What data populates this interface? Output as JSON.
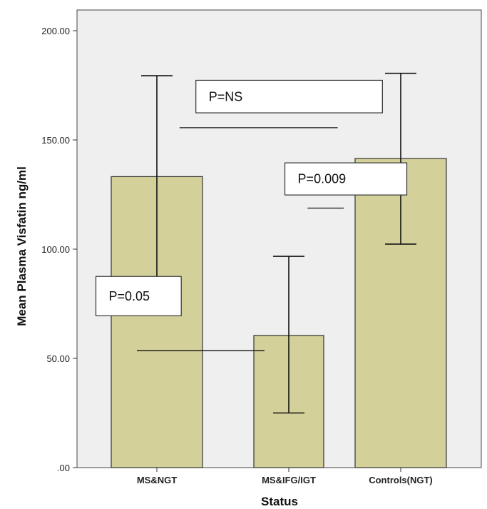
{
  "chart_data": {
    "type": "bar",
    "xlabel": "Status",
    "ylabel": "Mean Plasma Visfatin ng/ml",
    "ylim": [
      0,
      217
    ],
    "yticks": [
      0,
      50,
      100,
      150,
      200
    ],
    "ytick_labels": [
      ".00",
      "50.00",
      "100.00",
      "150.00",
      "200.00"
    ],
    "grid": false,
    "categories": [
      "MS&NGT",
      "MS&IFG/IGT",
      "Controls(NGT)"
    ],
    "values": [
      133.2,
      60.5,
      141.5
    ],
    "error_low": [
      86.5,
      25.0,
      102.3
    ],
    "error_high": [
      179.4,
      96.7,
      180.5
    ],
    "bar_color": "#d4d09a",
    "plot_background": "#efefef",
    "annotations": [
      {
        "text": "P=0.05",
        "from": 0,
        "to": 1,
        "line_y": 53.5,
        "box_top": 87.5,
        "box_bottom": 69.5,
        "box_x_start": -0.5,
        "box_x_end": 0.2
      },
      {
        "text": "P=0.009",
        "from": 1.4,
        "to": 1.65,
        "line_y": 118.8,
        "box_top": 139.5,
        "box_bottom": 124.8,
        "box_x_start": 1.05,
        "box_x_end": 2.05
      },
      {
        "text": "P=NS",
        "from": 0.35,
        "to": 1.6,
        "line_y": 155.6,
        "box_top": 177.3,
        "box_bottom": 162.4,
        "box_x_start": 0.32,
        "box_x_end": 1.85
      }
    ]
  }
}
